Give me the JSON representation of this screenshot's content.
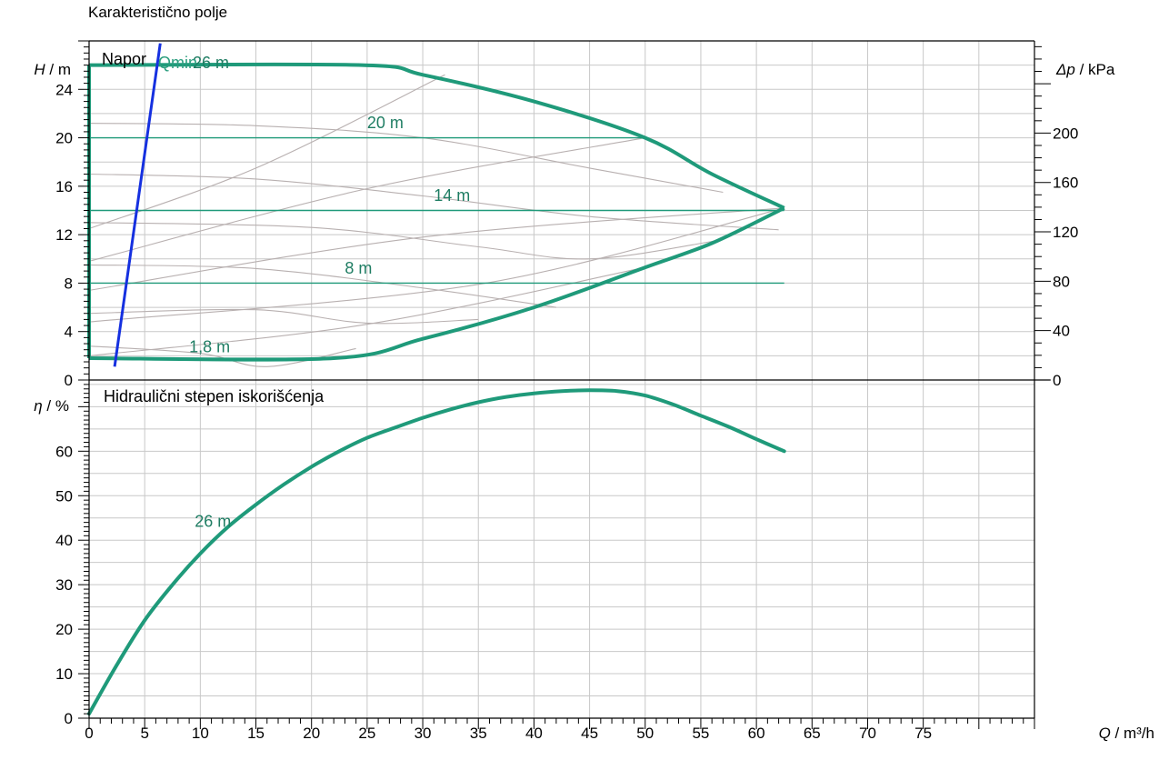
{
  "page_title": "Karakteristično polje",
  "colors": {
    "curve": "#1f9a7a",
    "helper": "#b8b0b0",
    "qmin": "#1530e0",
    "grid": "#c8c8c8",
    "axis": "#000000"
  },
  "chart_data": [
    {
      "id": "head",
      "type": "line",
      "panel_label": "Napor",
      "xlabel": {
        "symbol": "Q",
        "unit": "m³/h"
      },
      "ylabel_left": {
        "symbol": "H",
        "unit": "m"
      },
      "ylabel_right": {
        "symbol": "Δp",
        "unit": "kPa"
      },
      "xlim": [
        0,
        85
      ],
      "ylim": [
        0,
        28
      ],
      "y_ticks_left": [
        0,
        4,
        8,
        12,
        16,
        20,
        24
      ],
      "y_ticks_right": [
        0,
        40,
        80,
        120,
        160,
        200
      ],
      "grid": true,
      "envelope": {
        "name": "26 m",
        "top": [
          [
            0,
            26
          ],
          [
            24.5,
            26
          ],
          [
            30,
            25.2
          ],
          [
            40,
            23
          ],
          [
            50,
            20
          ],
          [
            56,
            17
          ],
          [
            62.5,
            14.2
          ]
        ],
        "bottom": [
          [
            0,
            1.8
          ],
          [
            22,
            1.8
          ],
          [
            30,
            3.4
          ],
          [
            40,
            6
          ],
          [
            50,
            9.3
          ],
          [
            56,
            11.3
          ],
          [
            62.5,
            14.2
          ]
        ]
      },
      "constant_head_lines": [
        {
          "label": "20 m",
          "y": 20,
          "x_end": 50
        },
        {
          "label": "14 m",
          "y": 14,
          "x_end": 62.5
        },
        {
          "label": "8 m",
          "y": 8,
          "x_end": 62.5
        },
        {
          "label": "1,8 m",
          "y": 1.8,
          "x_end": 22
        }
      ],
      "head_label_positions": [
        {
          "label": "20 m",
          "x": 25,
          "y": 20.8
        },
        {
          "label": "14 m",
          "x": 31,
          "y": 14.8
        },
        {
          "label": "8 m",
          "x": 23,
          "y": 8.8
        },
        {
          "label": "1,8 m",
          "x": 9,
          "y": 2.3
        }
      ],
      "qmin_line": {
        "label": "Qmin",
        "points": [
          [
            2.3,
            1.1
          ],
          [
            6.4,
            27.8
          ]
        ]
      },
      "helper_curves": [
        [
          [
            0,
            21.2
          ],
          [
            15,
            21.0
          ],
          [
            30,
            20.0
          ],
          [
            45,
            17.5
          ],
          [
            57,
            15.5
          ]
        ],
        [
          [
            0,
            17
          ],
          [
            15,
            16.6
          ],
          [
            30,
            15.2
          ],
          [
            45,
            13.5
          ],
          [
            62,
            12.4
          ]
        ],
        [
          [
            0,
            13
          ],
          [
            20,
            12.6
          ],
          [
            35,
            11
          ],
          [
            45,
            10
          ],
          [
            57,
            11.6
          ]
        ],
        [
          [
            0,
            9.5
          ],
          [
            15,
            9.2
          ],
          [
            30,
            7.6
          ],
          [
            42,
            6
          ]
        ],
        [
          [
            0,
            5.5
          ],
          [
            15,
            5.8
          ],
          [
            25,
            4.7
          ],
          [
            35,
            5
          ]
        ],
        [
          [
            0,
            2.8
          ],
          [
            10,
            2.2
          ],
          [
            16,
            1.1
          ],
          [
            24,
            2.6
          ]
        ],
        [
          [
            0,
            12.5
          ],
          [
            15,
            17.5
          ],
          [
            32,
            25.2
          ]
        ],
        [
          [
            0,
            9.8
          ],
          [
            25,
            15.8
          ],
          [
            50,
            20
          ]
        ],
        [
          [
            0,
            7.4
          ],
          [
            30,
            11.8
          ],
          [
            62.5,
            14.2
          ]
        ],
        [
          [
            0,
            4.8
          ],
          [
            35,
            7.9
          ],
          [
            62.5,
            14.2
          ]
        ],
        [
          [
            0,
            2
          ],
          [
            25,
            4.6
          ],
          [
            50,
            9.3
          ]
        ]
      ]
    },
    {
      "id": "efficiency",
      "type": "line",
      "panel_label": "Hidraulični stepen iskorišćenja",
      "xlabel": {
        "symbol": "Q",
        "unit": "m³/h"
      },
      "ylabel": {
        "symbol": "η",
        "unit": "%"
      },
      "xlim": [
        0,
        85
      ],
      "ylim": [
        0,
        76
      ],
      "x_ticks": [
        0,
        5,
        10,
        15,
        20,
        25,
        30,
        35,
        40,
        45,
        50,
        55,
        60,
        65,
        70,
        75
      ],
      "y_ticks": [
        0,
        10,
        20,
        30,
        40,
        50,
        60
      ],
      "grid": true,
      "series": [
        {
          "name": "26 m",
          "points": [
            [
              0,
              1
            ],
            [
              2.5,
              12
            ],
            [
              5,
              22
            ],
            [
              7.5,
              30
            ],
            [
              10,
              37
            ],
            [
              12.5,
              43
            ],
            [
              15,
              48
            ],
            [
              17.5,
              52.5
            ],
            [
              20,
              56.5
            ],
            [
              22.5,
              60
            ],
            [
              25,
              63
            ],
            [
              27.5,
              65.3
            ],
            [
              30,
              67.5
            ],
            [
              32.5,
              69.4
            ],
            [
              35,
              71
            ],
            [
              37.5,
              72.2
            ],
            [
              40,
              73
            ],
            [
              42.5,
              73.5
            ],
            [
              45,
              73.7
            ],
            [
              47.5,
              73.5
            ],
            [
              50,
              72.5
            ],
            [
              52.5,
              70.5
            ],
            [
              55,
              68
            ],
            [
              57.5,
              65.5
            ],
            [
              60,
              62.7
            ],
            [
              62.5,
              60
            ]
          ]
        }
      ],
      "series_label_position": {
        "label": "26 m",
        "x": 9.5,
        "y": 43
      }
    }
  ]
}
